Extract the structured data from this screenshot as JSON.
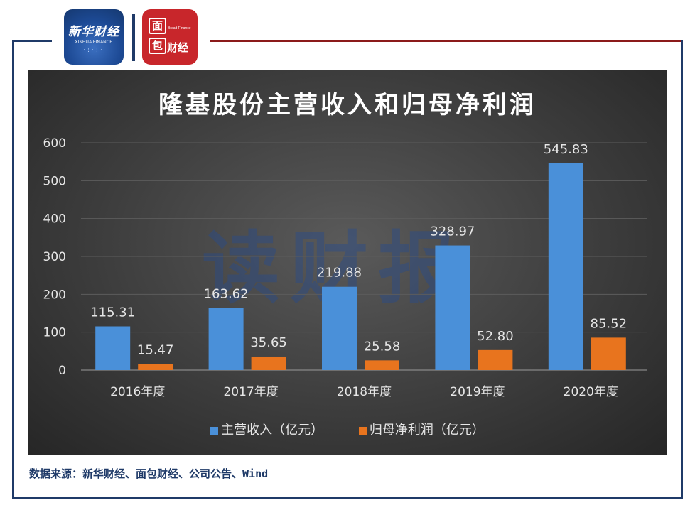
{
  "logos": {
    "xinhua_cn": "新华财经",
    "xinhua_en": "XINHUA FINANCE",
    "mianbao_top": "面",
    "mianbao_bottom": "包",
    "mianbao_text": "财经",
    "mianbao_tiny": "Bread Finance"
  },
  "watermark": "读财报",
  "source": "数据来源：新华财经、面包财经、公司公告、Wind",
  "colors": {
    "series1": "#4a90d9",
    "series2": "#e8741e"
  },
  "chart_data": {
    "type": "bar",
    "title": "隆基股份主营收入和归母净利润",
    "categories": [
      "2016年度",
      "2017年度",
      "2018年度",
      "2019年度",
      "2020年度"
    ],
    "series": [
      {
        "name": "主营收入（亿元）",
        "values": [
          115.31,
          163.62,
          219.88,
          328.97,
          545.83
        ],
        "labels": [
          "115.31",
          "163.62",
          "219.88",
          "328.97",
          "545.83"
        ]
      },
      {
        "name": "归母净利润（亿元）",
        "values": [
          15.47,
          35.65,
          25.58,
          52.8,
          85.52
        ],
        "labels": [
          "15.47",
          "35.65",
          "25.58",
          "52.80",
          "85.52"
        ]
      }
    ],
    "yticks": [
      "0",
      "100",
      "200",
      "300",
      "400",
      "500",
      "600"
    ],
    "ylim": [
      0,
      600
    ],
    "grid": true,
    "legend_position": "bottom"
  }
}
